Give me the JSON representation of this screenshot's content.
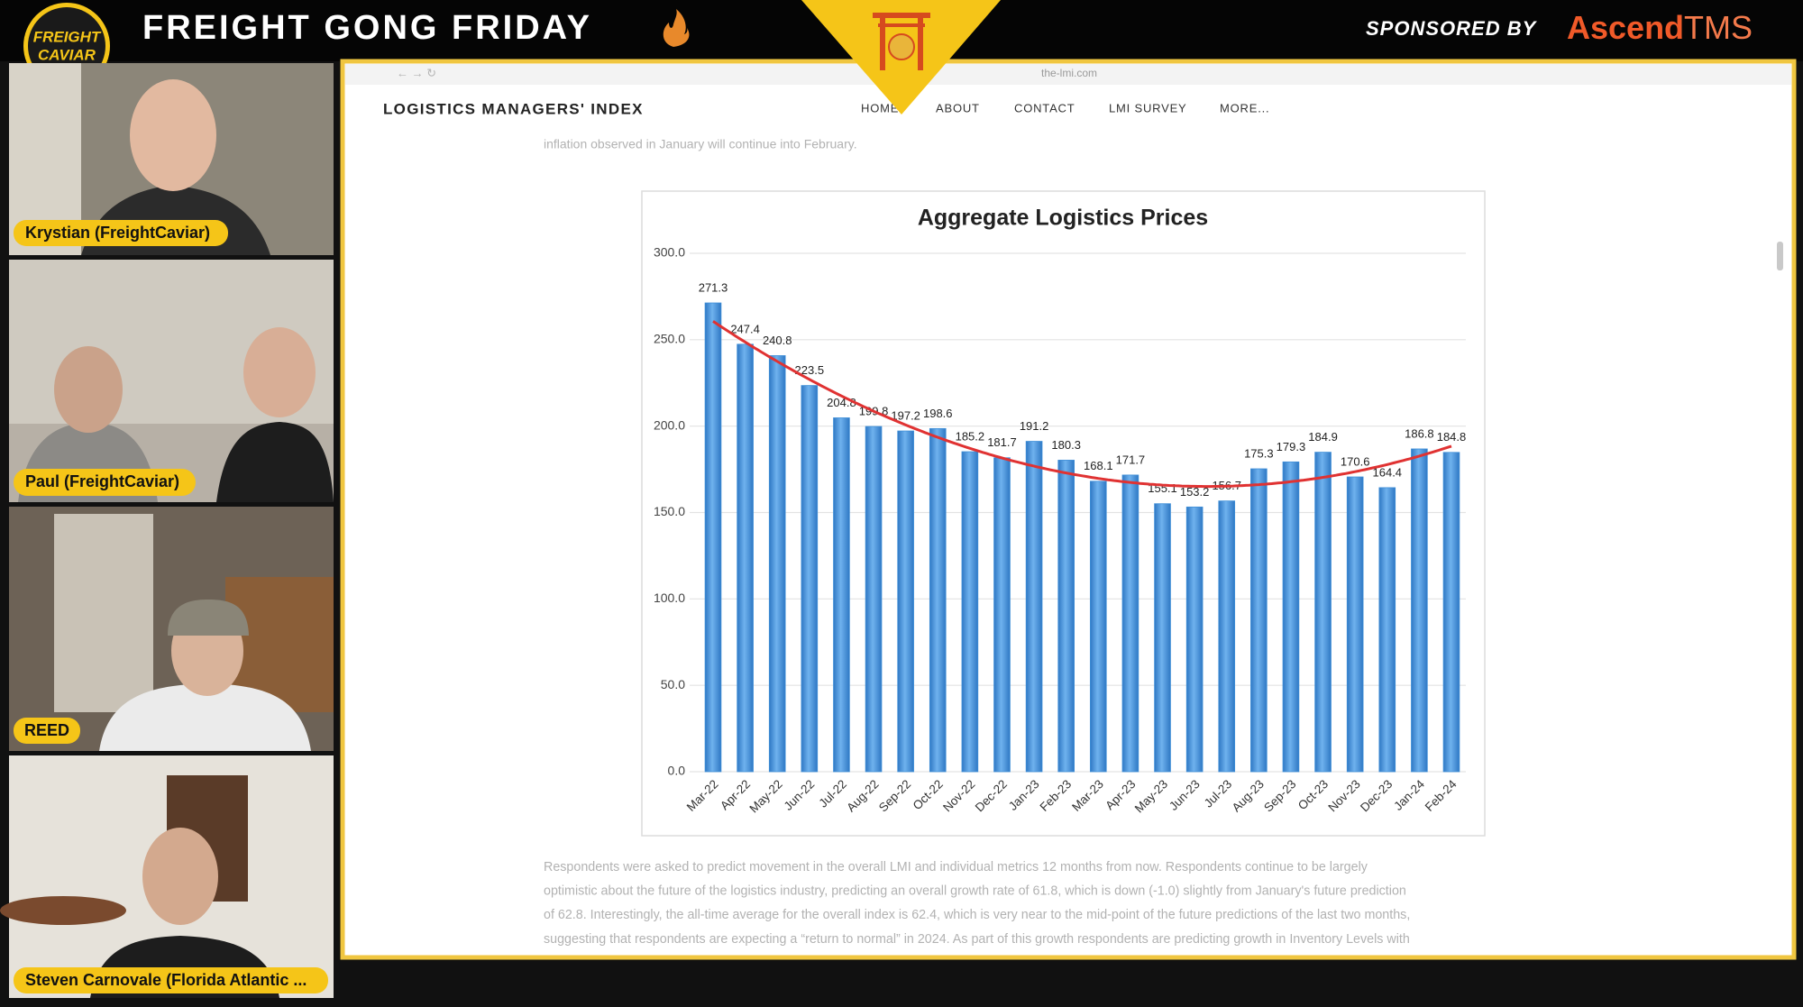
{
  "header": {
    "logo": [
      "FREIGHT",
      "CAVIAR"
    ],
    "title": "FREIGHT GONG FRIDAY",
    "sponsor_label": "SPONSORED BY",
    "sponsor_name": [
      "Ascend",
      "TMS"
    ]
  },
  "participants": [
    "Krystian (FreightCaviar)",
    "Paul (FreightCaviar)",
    "REED",
    "Steven Carnovale (Florida Atlantic ..."
  ],
  "browser": {
    "url": "the-lmi.com",
    "site_title": "LOGISTICS MANAGERS' INDEX",
    "nav": [
      "HOME",
      "ABOUT",
      "CONTACT",
      "LMI SURVEY",
      "MORE..."
    ],
    "intro": "inflation observed in January will continue into February.",
    "paragraph": [
      "Respondents were asked to predict movement in the overall LMI and individual metrics 12 months from now. Respondents continue to be largely",
      "optimistic about the future of the logistics industry, predicting an overall growth rate of 61.8, which is down (-1.0) slightly from January's future prediction",
      "of 62.8. Interestingly, the all-time average for the overall index is 62.4, which is very near to the mid-point of the future predictions of the last two months,",
      "suggesting that respondents are expecting a “return to normal” in 2024. As part of this growth respondents are predicting growth in Inventory Levels with"
    ]
  },
  "chart_data": {
    "type": "bar",
    "title": "Aggregate Logistics Prices",
    "categories": [
      "Mar-22",
      "Apr-22",
      "May-22",
      "Jun-22",
      "Jul-22",
      "Aug-22",
      "Sep-22",
      "Oct-22",
      "Nov-22",
      "Dec-22",
      "Jan-23",
      "Feb-23",
      "Mar-23",
      "Apr-23",
      "May-23",
      "Jun-23",
      "Jul-23",
      "Aug-23",
      "Sep-23",
      "Oct-23",
      "Nov-23",
      "Dec-23",
      "Jan-24",
      "Feb-24"
    ],
    "values": [
      271.3,
      247.4,
      240.8,
      223.5,
      204.8,
      199.8,
      197.2,
      198.6,
      185.2,
      181.7,
      191.2,
      180.3,
      168.1,
      171.7,
      155.1,
      153.2,
      156.7,
      175.3,
      179.3,
      184.9,
      170.6,
      164.4,
      186.8,
      184.8
    ],
    "color": "#3f8fd8",
    "trendline_color": "#e03232",
    "ylim": [
      0,
      300
    ],
    "yticks": [
      {
        "value": 0,
        "label": "0.0"
      },
      {
        "value": 50,
        "label": "50.0"
      },
      {
        "value": 100,
        "label": "100.0"
      },
      {
        "value": 150,
        "label": "150.0"
      },
      {
        "value": 200,
        "label": "200.0"
      },
      {
        "value": 250,
        "label": "250.0"
      },
      {
        "value": 300,
        "label": "300.0"
      }
    ],
    "grid": true
  }
}
